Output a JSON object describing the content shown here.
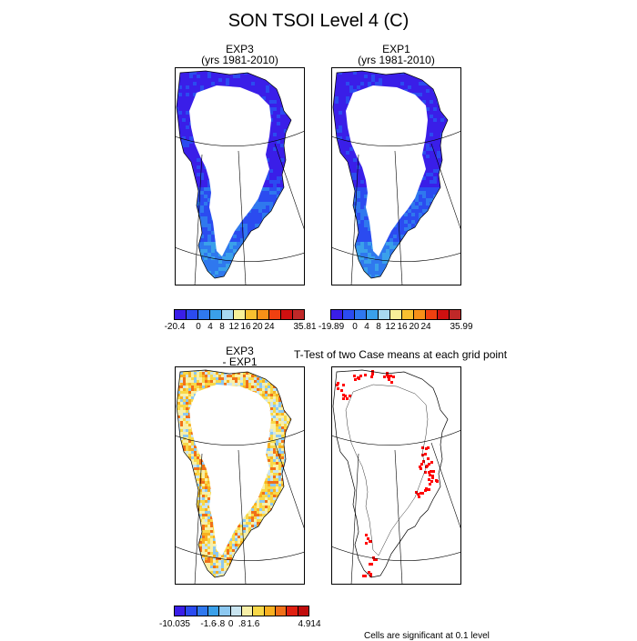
{
  "title": "SON TSOI Level 4 (C)",
  "panels": {
    "top_left": {
      "title_line1": "EXP3",
      "title_line2": "(yrs 1981-2010)"
    },
    "top_right": {
      "title_line1": "EXP1",
      "title_line2": "(yrs 1981-2010)"
    },
    "bottom_left": {
      "title_line1": "EXP3",
      "title_line2": "- EXP1"
    },
    "bottom_right": {
      "title": "T-Test of two Case means at each grid point"
    }
  },
  "legends": {
    "top_left": {
      "colors": [
        "#3a1ee8",
        "#2b4bf0",
        "#2f78ee",
        "#3aa0ea",
        "#a8d8f0",
        "#f8f098",
        "#f8c030",
        "#f89018",
        "#f04010",
        "#d01010",
        "#c02828"
      ],
      "labels": [
        "-20.4",
        "0",
        "4",
        "8",
        "12",
        "16",
        "20",
        "24",
        "35.81"
      ]
    },
    "top_right": {
      "colors": [
        "#3a1ee8",
        "#2b4bf0",
        "#2f78ee",
        "#3aa0ea",
        "#a8d8f0",
        "#f8f098",
        "#f8c030",
        "#f89018",
        "#f04010",
        "#d01010",
        "#c02828"
      ],
      "labels": [
        "-19.89",
        "0",
        "4",
        "8",
        "12",
        "16",
        "20",
        "24",
        "35.99"
      ]
    },
    "bottom_left": {
      "colors": [
        "#3a1ee8",
        "#2b4bf0",
        "#2f78ee",
        "#3aa0ea",
        "#8cc8f0",
        "#c8e4f0",
        "#f8f0a8",
        "#f8d848",
        "#f8b020",
        "#f07018",
        "#e02010",
        "#c00c0c"
      ],
      "labels": [
        "-10.035",
        "-1.6",
        "-.8",
        "0",
        ".8",
        "1.6",
        "4.914"
      ]
    }
  },
  "significance_note": "Cells are significant at 0.1 level",
  "colors": {
    "ice_interior": "#ffffff",
    "significant": "#ff0000",
    "map_border": "#000000"
  }
}
